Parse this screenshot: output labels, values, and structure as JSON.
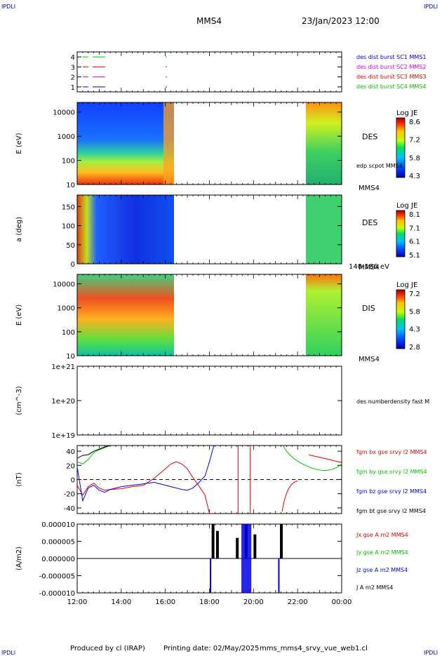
{
  "header": {
    "corner_label": "IPDLI",
    "spacecraft": "MMS4",
    "datetime": "23/Jan/2023 12:00"
  },
  "footer": {
    "produced_by": "Produced by cl (IRAP)",
    "printing_date": "Printing date: 02/May/2025",
    "filename": "mms_mms4_srvy_vue_web1.cl"
  },
  "colors": {
    "red": "#e00000",
    "green": "#00c000",
    "blue": "#0000e0",
    "magenta": "#d000d0",
    "black": "#000000",
    "dark_blue": "#0000aa"
  },
  "chart_data": [
    {
      "type": "line",
      "panel": "burst_flags",
      "y_ticks": [
        "1",
        "2",
        "3",
        "4"
      ],
      "ylim": [
        0.5,
        4.5
      ],
      "legend": [
        {
          "label": "des dist burst SC1 MMS1",
          "color": "#0000cc",
          "level": 1
        },
        {
          "label": "des dist burst SC2 MMS2",
          "color": "#d000d0",
          "level": 2
        },
        {
          "label": "des dist burst SC3 MMS3",
          "color": "#e00000",
          "level": 3
        },
        {
          "label": "des dist burst SC4 MMS4",
          "color": "#00c000",
          "level": 4
        }
      ]
    },
    {
      "type": "heatmap",
      "panel": "des_energy",
      "ylabel": "E (eV)",
      "y_scale": "log",
      "y_ticks": [
        "10",
        "100",
        "1000",
        "10000"
      ],
      "ylim": [
        10,
        25000
      ],
      "instrument": "DES",
      "overlay": "edp scpot MMS4",
      "spacecraft_label": "MMS4",
      "colorbar": {
        "title": "Log JE",
        "ticks": [
          "8.6",
          "7.2",
          "5.8",
          "4.3"
        ],
        "range": [
          4.3,
          8.6
        ]
      }
    },
    {
      "type": "heatmap",
      "panel": "des_pitch",
      "ylabel": "a (deg)",
      "y_ticks": [
        "0",
        "50",
        "100",
        "150"
      ],
      "ylim": [
        0,
        180
      ],
      "instrument": "DES",
      "spacecraft_label": "MMS4",
      "energy_range": "140-186 eV",
      "colorbar": {
        "title": "Log JE",
        "ticks": [
          "8.1",
          "7.1",
          "6.1",
          "5.1"
        ],
        "range": [
          5.1,
          8.1
        ]
      }
    },
    {
      "type": "heatmap",
      "panel": "dis_energy",
      "ylabel": "E (eV)",
      "y_scale": "log",
      "y_ticks": [
        "10",
        "100",
        "1000",
        "10000"
      ],
      "ylim": [
        10,
        25000
      ],
      "instrument": "DIS",
      "spacecraft_label": "MMS4",
      "colorbar": {
        "title": "Log JE",
        "ticks": [
          "7.2",
          "5.8",
          "4.3",
          "2.8"
        ],
        "range": [
          2.8,
          7.2
        ]
      }
    },
    {
      "type": "line",
      "panel": "density",
      "ylabel": "(cm^-3)",
      "y_scale": "log",
      "y_ticks": [
        "1e+21",
        "1e+20",
        "1e+19"
      ],
      "ylim": [
        1e+19,
        1e+21
      ],
      "series": [
        {
          "name": "des numberdensity fast M",
          "values": []
        }
      ]
    },
    {
      "type": "line",
      "panel": "fgm",
      "ylabel": "(nT)",
      "y_ticks": [
        "40",
        "20",
        "0",
        "-20",
        "-40"
      ],
      "ylim": [
        -48,
        48
      ],
      "x_hours": [
        0,
        0.25,
        0.5,
        0.75,
        1,
        1.25,
        1.5,
        2,
        2.5,
        3,
        3.5,
        4,
        4.25,
        4.5,
        4.75,
        5,
        5.25,
        5.5,
        5.8,
        6,
        6.2
      ],
      "series": [
        {
          "name": "fgm bx gse srvy l2 MMS4",
          "color": "#e00000",
          "values": [
            -8,
            -22,
            -10,
            -5,
            -12,
            -15,
            -14,
            -13,
            -10,
            -8,
            2,
            15,
            22,
            25,
            22,
            15,
            3,
            -8,
            -22,
            -48,
            null
          ]
        },
        {
          "name": "fgm by gse srvy l2 MMS4",
          "color": "#00c000",
          "values": [
            25,
            22,
            28,
            38,
            42,
            45,
            48,
            null,
            null,
            null,
            null,
            null,
            null,
            null,
            null,
            null,
            null,
            null,
            null,
            null,
            null
          ]
        },
        {
          "name": "fgm bz gse srvy l2 MMS4",
          "color": "#0000e0",
          "values": [
            18,
            -30,
            -12,
            -8,
            -15,
            -18,
            -14,
            -10,
            -8,
            -6,
            -4,
            -8,
            -10,
            -12,
            -14,
            -15,
            -12,
            -5,
            5,
            25,
            48
          ]
        },
        {
          "name": "fgm bt gse srvy l2 MMS4",
          "color": "#000000",
          "values": [
            30,
            34,
            35,
            40,
            43,
            46,
            48,
            null,
            null,
            null,
            null,
            null,
            null,
            null,
            null,
            null,
            null,
            null,
            null,
            null,
            null
          ]
        }
      ]
    },
    {
      "type": "line",
      "panel": "current",
      "ylabel": "(A/m2)",
      "y_ticks": [
        "0.000010",
        "0.000005",
        "0.000000",
        "-0.000005",
        "-0.000010"
      ],
      "ylim": [
        -1e-05,
        1e-05
      ],
      "series": [
        {
          "name": "Jx gse A m2 MMS4",
          "color": "#e00000"
        },
        {
          "name": "Jy gse A m2 MMS4",
          "color": "#00c000"
        },
        {
          "name": "Jz gse A m2 MMS4",
          "color": "#0000e0"
        },
        {
          "name": "J A m2 MMS4",
          "color": "#000000"
        }
      ]
    }
  ],
  "x_axis": {
    "ticks": [
      "12:00",
      "14:00",
      "16:00",
      "18:00",
      "20:00",
      "22:00",
      "00:00"
    ],
    "range_hours": [
      0,
      12
    ]
  }
}
